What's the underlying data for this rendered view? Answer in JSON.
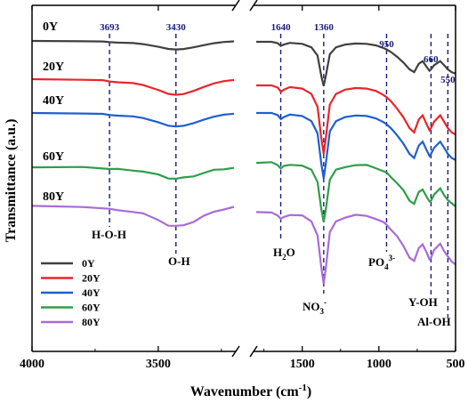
{
  "chart_data": {
    "type": "line",
    "xlabel": "Wavenumber (cm⁻¹)",
    "ylabel": "Transmittance (a.u.)",
    "x_ticks": [
      "4000",
      "3500",
      "1500",
      "1000",
      "500"
    ],
    "x_break": [
      3200,
      1800
    ],
    "xlim": [
      4000,
      500
    ],
    "reversed_x": true,
    "series": [
      {
        "name": "0Y",
        "color": "#404040"
      },
      {
        "name": "20Y",
        "color": "#e8262a"
      },
      {
        "name": "40Y",
        "color": "#1f5fd1"
      },
      {
        "name": "60Y",
        "color": "#2e9e4a"
      },
      {
        "name": "80Y",
        "color": "#a96bd6"
      }
    ],
    "peaks": [
      {
        "wavenumber": 3693,
        "label": "3693",
        "assignment": "H-O-H"
      },
      {
        "wavenumber": 3430,
        "label": "3430",
        "assignment": "O-H"
      },
      {
        "wavenumber": 1640,
        "label": "1640",
        "assignment": "H2O"
      },
      {
        "wavenumber": 1360,
        "label": "1360",
        "assignment": "NO3-"
      },
      {
        "wavenumber": 950,
        "label": "950",
        "assignment": "PO43-"
      },
      {
        "wavenumber": 660,
        "label": "660",
        "assignment": "Y-OH"
      },
      {
        "wavenumber": 550,
        "label": "550",
        "assignment": "Al-OH"
      }
    ],
    "curves": {
      "left": [
        [
          4000,
          0.0
        ],
        [
          3800,
          -0.3
        ],
        [
          3720,
          -0.5
        ],
        [
          3693,
          -1.2
        ],
        [
          3660,
          -1.6
        ],
        [
          3600,
          -2.0
        ],
        [
          3560,
          -3.0
        ],
        [
          3500,
          -5.5
        ],
        [
          3460,
          -7.5
        ],
        [
          3430,
          -8.0
        ],
        [
          3400,
          -7.6
        ],
        [
          3360,
          -6.0
        ],
        [
          3320,
          -4.0
        ],
        [
          3280,
          -2.2
        ],
        [
          3240,
          -1.0
        ],
        [
          3200,
          -0.4
        ]
      ],
      "right": [
        [
          1800,
          0.0
        ],
        [
          1700,
          0.0
        ],
        [
          1660,
          -1.0
        ],
        [
          1640,
          -3.0
        ],
        [
          1620,
          -2.0
        ],
        [
          1580,
          -0.8
        ],
        [
          1500,
          -1.5
        ],
        [
          1440,
          -4.0
        ],
        [
          1400,
          -10.0
        ],
        [
          1375,
          -25.0
        ],
        [
          1360,
          -32.0
        ],
        [
          1345,
          -24.0
        ],
        [
          1320,
          -9.0
        ],
        [
          1280,
          -4.0
        ],
        [
          1220,
          -2.0
        ],
        [
          1150,
          -1.2
        ],
        [
          1080,
          -1.5
        ],
        [
          1020,
          -2.6
        ],
        [
          970,
          -4.5
        ],
        [
          950,
          -5.5
        ],
        [
          920,
          -7.5
        ],
        [
          880,
          -11.0
        ],
        [
          840,
          -15.0
        ],
        [
          800,
          -20.0
        ],
        [
          770,
          -22.0
        ],
        [
          740,
          -16.0
        ],
        [
          715,
          -14.0
        ],
        [
          690,
          -18.0
        ],
        [
          670,
          -21.0
        ],
        [
          660,
          -20.0
        ],
        [
          640,
          -17.0
        ],
        [
          600,
          -14.0
        ],
        [
          575,
          -17.0
        ],
        [
          550,
          -20.0
        ],
        [
          525,
          -22.0
        ],
        [
          500,
          -23.0
        ]
      ]
    },
    "legend_position": "bottom-left"
  },
  "text": {
    "h2o_main": "H",
    "h2o_sub": "2",
    "h2o_tail": "O",
    "no3_main": "NO",
    "no3_sub": "3",
    "no3_sup": "-",
    "po4_main": "PO",
    "po4_sub": "4",
    "po4_sup": "3-",
    "y_oh": "Y-OH",
    "al_oh": "Al-OH",
    "hoh": "H-O-H",
    "oh": "O-H",
    "xlabel_main": "Wavenumber (cm",
    "xlabel_sup": "-1",
    "xlabel_tail": ")"
  }
}
